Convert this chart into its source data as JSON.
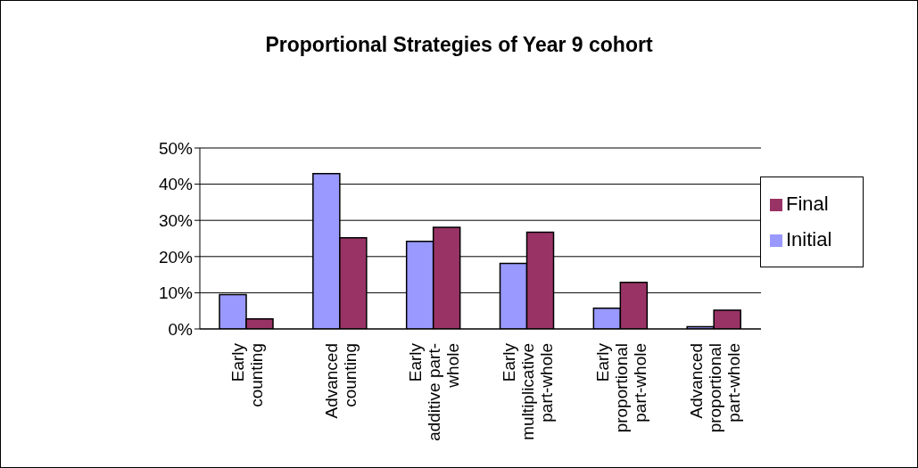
{
  "chart_data": {
    "type": "bar",
    "title": "Proportional Strategies of Year 9 cohort",
    "categories": [
      "Early\ncounting",
      "Advanced\ncounting",
      "Early\nadditive part-\nwhole",
      "Early\nmultiplicative\npart-whole",
      "Early\nproportional\npart-whole",
      "Advanced\nproportional\npart-whole"
    ],
    "series": [
      {
        "name": "Initial",
        "color": "#9999ff",
        "values": [
          9.5,
          42.9,
          24.2,
          18.1,
          5.7,
          0.6
        ]
      },
      {
        "name": "Final",
        "color": "#993366",
        "values": [
          2.8,
          25.2,
          28.1,
          26.7,
          12.9,
          5.2
        ]
      }
    ],
    "ylim": [
      0,
      50
    ],
    "yticks": [
      {
        "value": 0,
        "label": "0%"
      },
      {
        "value": 10,
        "label": "10%"
      },
      {
        "value": 20,
        "label": "20%"
      },
      {
        "value": 30,
        "label": "30%"
      },
      {
        "value": 40,
        "label": "40%"
      },
      {
        "value": 50,
        "label": "50%"
      }
    ],
    "grid": "y",
    "legend": "right"
  }
}
